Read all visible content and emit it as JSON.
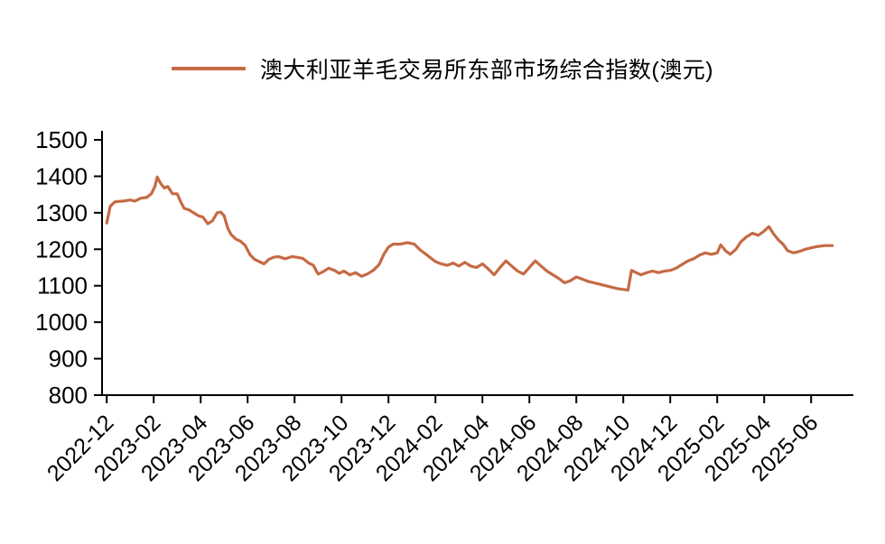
{
  "legend": {
    "label": "澳大利亚羊毛交易所东部市场综合指数(澳元)"
  },
  "chart_data": {
    "type": "line",
    "title": "澳大利亚羊毛交易所东部市场综合指数(澳元)",
    "series": [
      {
        "name": "澳大利亚羊毛交易所东部市场综合指数(澳元)",
        "color": "#c56a45",
        "x_unit": "months since 2022-12",
        "points": [
          [
            0,
            1272
          ],
          [
            0.15,
            1318
          ],
          [
            0.35,
            1330
          ],
          [
            0.7,
            1332
          ],
          [
            1.0,
            1335
          ],
          [
            1.2,
            1332
          ],
          [
            1.45,
            1340
          ],
          [
            1.7,
            1342
          ],
          [
            1.9,
            1352
          ],
          [
            2.05,
            1372
          ],
          [
            2.15,
            1398
          ],
          [
            2.3,
            1380
          ],
          [
            2.45,
            1368
          ],
          [
            2.6,
            1372
          ],
          [
            2.8,
            1352
          ],
          [
            3.0,
            1352
          ],
          [
            3.15,
            1330
          ],
          [
            3.3,
            1312
          ],
          [
            3.5,
            1308
          ],
          [
            3.7,
            1300
          ],
          [
            3.9,
            1292
          ],
          [
            4.1,
            1288
          ],
          [
            4.3,
            1270
          ],
          [
            4.5,
            1278
          ],
          [
            4.7,
            1300
          ],
          [
            4.85,
            1302
          ],
          [
            5.0,
            1292
          ],
          [
            5.15,
            1258
          ],
          [
            5.3,
            1240
          ],
          [
            5.5,
            1228
          ],
          [
            5.7,
            1222
          ],
          [
            5.9,
            1210
          ],
          [
            6.1,
            1185
          ],
          [
            6.3,
            1172
          ],
          [
            6.5,
            1166
          ],
          [
            6.7,
            1160
          ],
          [
            6.9,
            1172
          ],
          [
            7.1,
            1178
          ],
          [
            7.3,
            1180
          ],
          [
            7.6,
            1174
          ],
          [
            7.9,
            1180
          ],
          [
            8.1,
            1178
          ],
          [
            8.35,
            1175
          ],
          [
            8.6,
            1162
          ],
          [
            8.8,
            1156
          ],
          [
            9.0,
            1132
          ],
          [
            9.2,
            1138
          ],
          [
            9.45,
            1148
          ],
          [
            9.7,
            1142
          ],
          [
            9.9,
            1134
          ],
          [
            10.1,
            1140
          ],
          [
            10.35,
            1130
          ],
          [
            10.6,
            1136
          ],
          [
            10.85,
            1126
          ],
          [
            11.1,
            1132
          ],
          [
            11.35,
            1142
          ],
          [
            11.6,
            1158
          ],
          [
            11.8,
            1186
          ],
          [
            12.0,
            1206
          ],
          [
            12.2,
            1214
          ],
          [
            12.5,
            1214
          ],
          [
            12.8,
            1218
          ],
          [
            13.1,
            1214
          ],
          [
            13.35,
            1198
          ],
          [
            13.6,
            1186
          ],
          [
            13.8,
            1176
          ],
          [
            14.0,
            1166
          ],
          [
            14.25,
            1160
          ],
          [
            14.5,
            1156
          ],
          [
            14.75,
            1162
          ],
          [
            15.0,
            1154
          ],
          [
            15.25,
            1164
          ],
          [
            15.5,
            1154
          ],
          [
            15.75,
            1150
          ],
          [
            16.0,
            1160
          ],
          [
            16.25,
            1146
          ],
          [
            16.5,
            1130
          ],
          [
            16.75,
            1150
          ],
          [
            17.0,
            1168
          ],
          [
            17.25,
            1154
          ],
          [
            17.5,
            1140
          ],
          [
            17.75,
            1132
          ],
          [
            18.0,
            1150
          ],
          [
            18.25,
            1168
          ],
          [
            18.5,
            1154
          ],
          [
            18.75,
            1140
          ],
          [
            19.0,
            1130
          ],
          [
            19.25,
            1120
          ],
          [
            19.5,
            1108
          ],
          [
            19.75,
            1114
          ],
          [
            20.0,
            1124
          ],
          [
            20.25,
            1118
          ],
          [
            20.5,
            1112
          ],
          [
            20.75,
            1108
          ],
          [
            21.0,
            1104
          ],
          [
            21.25,
            1100
          ],
          [
            21.5,
            1096
          ],
          [
            21.75,
            1092
          ],
          [
            22.0,
            1090
          ],
          [
            22.2,
            1088
          ],
          [
            22.35,
            1142
          ],
          [
            22.55,
            1136
          ],
          [
            22.75,
            1130
          ],
          [
            23.0,
            1136
          ],
          [
            23.25,
            1140
          ],
          [
            23.5,
            1136
          ],
          [
            23.75,
            1140
          ],
          [
            24.0,
            1142
          ],
          [
            24.25,
            1148
          ],
          [
            24.5,
            1158
          ],
          [
            24.75,
            1168
          ],
          [
            25.0,
            1174
          ],
          [
            25.25,
            1184
          ],
          [
            25.5,
            1190
          ],
          [
            25.75,
            1186
          ],
          [
            26.0,
            1190
          ],
          [
            26.15,
            1212
          ],
          [
            26.35,
            1196
          ],
          [
            26.55,
            1186
          ],
          [
            26.8,
            1200
          ],
          [
            27.0,
            1220
          ],
          [
            27.25,
            1234
          ],
          [
            27.5,
            1244
          ],
          [
            27.75,
            1238
          ],
          [
            28.0,
            1250
          ],
          [
            28.2,
            1262
          ],
          [
            28.4,
            1242
          ],
          [
            28.6,
            1226
          ],
          [
            28.8,
            1214
          ],
          [
            29.0,
            1196
          ],
          [
            29.25,
            1190
          ],
          [
            29.5,
            1194
          ],
          [
            29.75,
            1200
          ],
          [
            30.0,
            1204
          ],
          [
            30.3,
            1208
          ],
          [
            30.6,
            1210
          ],
          [
            30.9,
            1210
          ]
        ]
      }
    ],
    "x_tick_positions": [
      0,
      2,
      4,
      6,
      8,
      10,
      12,
      14,
      16,
      18,
      20,
      22,
      24,
      26,
      28,
      30
    ],
    "x_tick_labels": [
      "2022-12",
      "2023-02",
      "2023-04",
      "2023-06",
      "2023-08",
      "2023-10",
      "2023-12",
      "2024-02",
      "2024-04",
      "2024-06",
      "2024-08",
      "2024-10",
      "2024-12",
      "2025-02",
      "2025-04",
      "2025-06"
    ],
    "xlim": [
      -0.2,
      31.8
    ],
    "ylim": [
      800,
      1500
    ],
    "y_ticks": [
      800,
      900,
      1000,
      1100,
      1200,
      1300,
      1400,
      1500
    ],
    "grid": false,
    "legend_position": "top-center",
    "axis_color": "#000000",
    "label_color": "#000000"
  }
}
